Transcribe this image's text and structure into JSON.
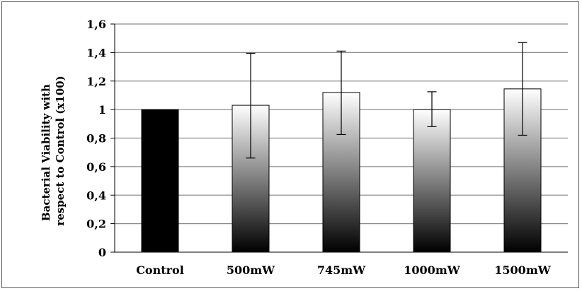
{
  "chart_data": {
    "type": "bar",
    "title": "",
    "xlabel": "",
    "ylabel_lines": [
      "Bacterial Viability with",
      "respect to Control (x100)"
    ],
    "categories": [
      "Control",
      "500mW",
      "745mW",
      "1000mW",
      "1500mW"
    ],
    "values": [
      1.0,
      1.03,
      1.12,
      1.0,
      1.145
    ],
    "error_low": [
      1.0,
      0.66,
      0.825,
      0.88,
      0.82
    ],
    "error_high": [
      1.0,
      1.395,
      1.41,
      1.125,
      1.47
    ],
    "ylim": [
      0,
      1.6
    ],
    "yticks": [
      0,
      0.2,
      0.4,
      0.6,
      0.8,
      1,
      1.2,
      1.4,
      1.6
    ],
    "ytick_labels": [
      "0",
      "0,2",
      "0,4",
      "0,6",
      "0,8",
      "1",
      "1,2",
      "1,4",
      "1,6"
    ],
    "grid": true,
    "legend": "none",
    "colors": {
      "control_fill": "#000000",
      "gradient_top": "#ffffff",
      "gradient_bottom": "#000000",
      "grid": "#8c8c8c",
      "axis": "#000000"
    }
  }
}
